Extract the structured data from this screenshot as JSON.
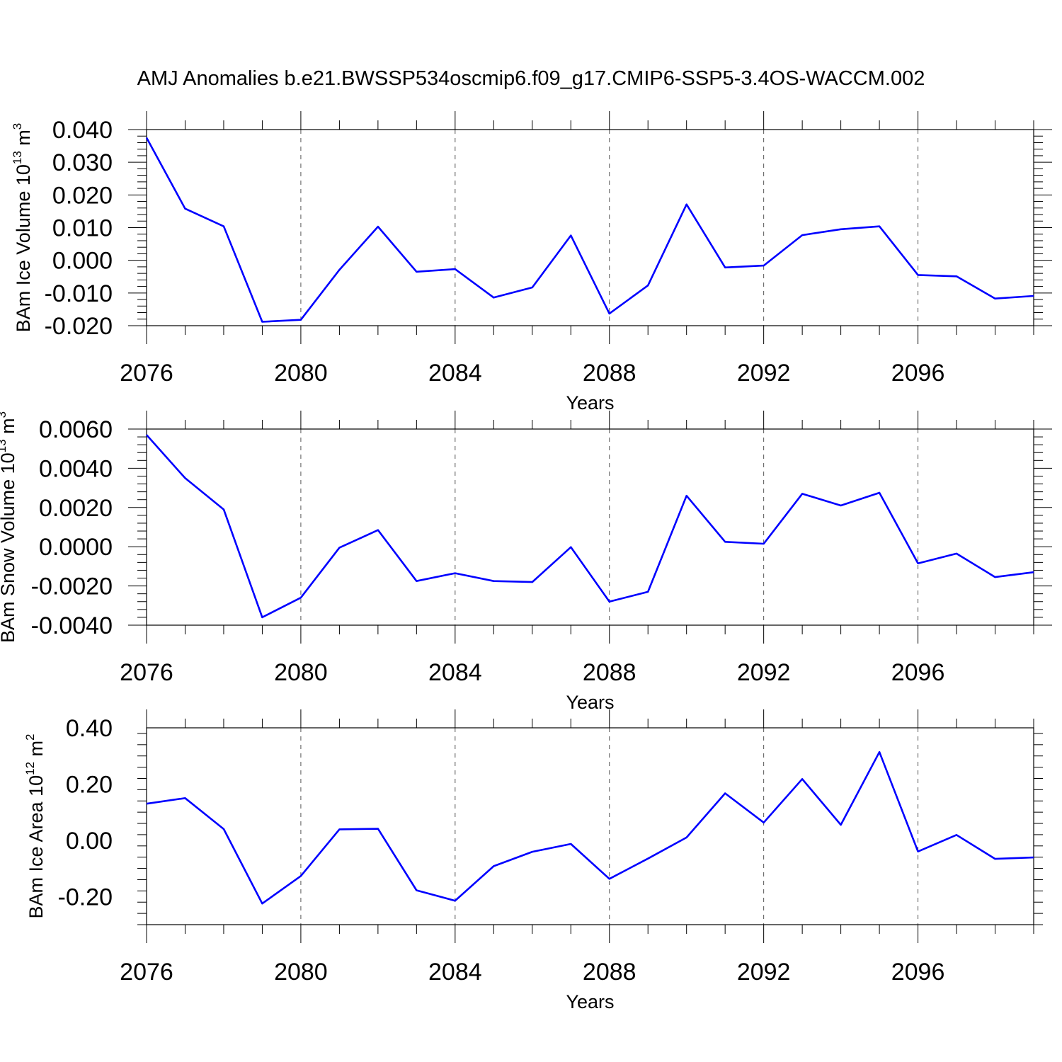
{
  "title": "AMJ Anomalies b.e21.BWSSP534oscmip6.f09_g17.CMIP6-SSP5-3.4OS-WACCM.002",
  "colors": {
    "line": "#0000ff",
    "axis": "#000000",
    "grid": "#555555",
    "background": "#ffffff"
  },
  "chart_data": [
    {
      "type": "line",
      "ylabel": {
        "text": "BAm Ice Volume 10",
        "exp": "13",
        "unit": " m",
        "unit_exp": "3"
      },
      "xlabel": "Years",
      "x": [
        2076,
        2077,
        2078,
        2079,
        2080,
        2081,
        2082,
        2083,
        2084,
        2085,
        2086,
        2087,
        2088,
        2089,
        2090,
        2091,
        2092,
        2093,
        2094,
        2095,
        2096,
        2097,
        2098,
        2099
      ],
      "values": [
        0.0375,
        0.0158,
        0.0104,
        -0.0188,
        -0.0182,
        -0.0029,
        0.0103,
        -0.0035,
        -0.0027,
        -0.0114,
        -0.0083,
        0.0076,
        -0.0163,
        -0.0077,
        0.0171,
        -0.0022,
        -0.0016,
        0.0077,
        0.0095,
        0.0104,
        -0.0045,
        -0.0049,
        -0.0117,
        -0.0109
      ],
      "xlim": [
        2076,
        2099
      ],
      "ylim": [
        -0.02,
        0.04
      ],
      "yticks": [
        -0.02,
        -0.01,
        0.0,
        0.01,
        0.02,
        0.03,
        0.04
      ],
      "ytick_labels": [
        "-0.020",
        "-0.010",
        "0.000",
        "0.010",
        "0.020",
        "0.030",
        "0.040"
      ],
      "xticks": [
        2076,
        2080,
        2084,
        2088,
        2092,
        2096
      ],
      "xtick_labels": [
        "2076",
        "2080",
        "2084",
        "2088",
        "2092",
        "2096"
      ],
      "grid": "vertical dashed at major x ticks"
    },
    {
      "type": "line",
      "ylabel": {
        "text": "BAm Snow Volume 10",
        "exp": "13",
        "unit": " m",
        "unit_exp": "3"
      },
      "xlabel": "Years",
      "x": [
        2076,
        2077,
        2078,
        2079,
        2080,
        2081,
        2082,
        2083,
        2084,
        2085,
        2086,
        2087,
        2088,
        2089,
        2090,
        2091,
        2092,
        2093,
        2094,
        2095,
        2096,
        2097,
        2098,
        2099
      ],
      "values": [
        0.0057,
        0.0035,
        0.0019,
        -0.0036,
        -0.0026,
        -5e-05,
        0.00085,
        -0.00175,
        -0.00135,
        -0.00175,
        -0.0018,
        -2e-05,
        -0.0028,
        -0.0023,
        0.0026,
        0.00025,
        0.00015,
        0.0027,
        0.0021,
        0.00275,
        -0.00085,
        -0.00035,
        -0.00155,
        -0.0013
      ],
      "xlim": [
        2076,
        2099
      ],
      "ylim": [
        -0.004,
        0.006
      ],
      "yticks": [
        -0.004,
        -0.002,
        0.0,
        0.002,
        0.004,
        0.006
      ],
      "ytick_labels": [
        "-0.0040",
        "-0.0020",
        "0.0000",
        "0.0020",
        "0.0040",
        "0.0060"
      ],
      "xticks": [
        2076,
        2080,
        2084,
        2088,
        2092,
        2096
      ],
      "xtick_labels": [
        "2076",
        "2080",
        "2084",
        "2088",
        "2092",
        "2096"
      ],
      "grid": "vertical dashed at major x ticks"
    },
    {
      "type": "line",
      "ylabel": {
        "text": "BAm Ice Area 10",
        "exp": "12",
        "unit": " m",
        "unit_exp": "2"
      },
      "xlabel": "Years",
      "x": [
        2076,
        2077,
        2078,
        2079,
        2080,
        2081,
        2082,
        2083,
        2084,
        2085,
        2086,
        2087,
        2088,
        2089,
        2090,
        2091,
        2092,
        2093,
        2094,
        2095,
        2096,
        2097,
        2098,
        2099
      ],
      "values": [
        0.13,
        0.15,
        0.04,
        -0.225,
        -0.127,
        0.039,
        0.041,
        -0.178,
        -0.215,
        -0.092,
        -0.041,
        -0.013,
        -0.137,
        -0.065,
        0.01,
        0.167,
        0.063,
        0.218,
        0.055,
        0.314,
        -0.04,
        0.019,
        -0.066,
        -0.061
      ],
      "xlim": [
        2076,
        2099
      ],
      "ylim": [
        -0.3,
        0.4
      ],
      "yticks": [
        -0.2,
        0.0,
        0.2,
        0.4
      ],
      "ytick_labels": [
        "-0.20",
        "0.00",
        "0.20",
        "0.40"
      ],
      "xticks": [
        2076,
        2080,
        2084,
        2088,
        2092,
        2096
      ],
      "xtick_labels": [
        "2076",
        "2080",
        "2084",
        "2088",
        "2092",
        "2096"
      ],
      "grid": "vertical dashed at major x ticks"
    }
  ]
}
